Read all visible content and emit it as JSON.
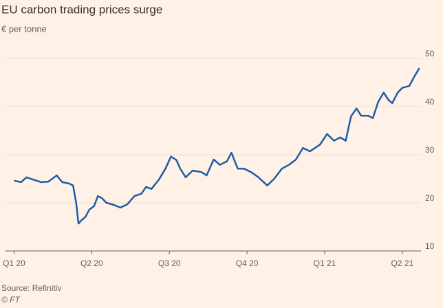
{
  "chart_data": {
    "type": "line",
    "title": "EU carbon trading prices surge",
    "subtitle": "€ per tonne",
    "source": "Source: Refinitiv",
    "credit": "© FT",
    "x": [
      0,
      0.09,
      0.16,
      0.27,
      0.35,
      0.44,
      0.55,
      0.62,
      0.71,
      0.76,
      0.8,
      0.83,
      0.87,
      0.92,
      0.97,
      1.03,
      1.08,
      1.13,
      1.19,
      1.28,
      1.37,
      1.46,
      1.55,
      1.64,
      1.7,
      1.77,
      1.86,
      1.95,
      2.02,
      2.09,
      2.14,
      2.21,
      2.3,
      2.41,
      2.48,
      2.57,
      2.65,
      2.74,
      2.8,
      2.88,
      2.96,
      3.05,
      3.14,
      3.26,
      3.35,
      3.45,
      3.54,
      3.63,
      3.72,
      3.81,
      3.94,
      4.03,
      4.12,
      4.2,
      4.27,
      4.34,
      4.41,
      4.47,
      4.56,
      4.62,
      4.69,
      4.76,
      4.82,
      4.87,
      4.94,
      5,
      5.09,
      5.16,
      5.22
    ],
    "series": [
      {
        "color": "#1c5ca8",
        "values": [
          24.6,
          24.3,
          25.3,
          24.7,
          24.3,
          24.4,
          25.7,
          24.3,
          24,
          23.6,
          20,
          15.7,
          16.4,
          17.1,
          18.6,
          19.3,
          21.4,
          21,
          20,
          19.6,
          19,
          19.7,
          21.4,
          21.9,
          23.3,
          22.9,
          24.7,
          27.1,
          29.6,
          28.9,
          27.1,
          25.3,
          26.7,
          26.4,
          25.7,
          29,
          27.9,
          28.6,
          30.4,
          27.1,
          27.1,
          26.4,
          25.4,
          23.6,
          25,
          27.1,
          27.9,
          29,
          31.4,
          30.7,
          32.1,
          34.3,
          32.9,
          33.6,
          32.9,
          38,
          39.6,
          38.1,
          38.1,
          37.6,
          41,
          42.9,
          41.4,
          40.7,
          42.9,
          43.9,
          44.3,
          46.4,
          48
        ]
      }
    ],
    "xlim": [
      -0.11,
      5.24
    ],
    "xticks": [
      {
        "value": 0,
        "label": "Q1 20"
      },
      {
        "value": 1,
        "label": "Q2 20"
      },
      {
        "value": 2,
        "label": "Q3 20"
      },
      {
        "value": 3,
        "label": "Q4 20"
      },
      {
        "value": 4,
        "label": "Q1 21"
      },
      {
        "value": 5,
        "label": "Q2 21"
      }
    ],
    "ylim": [
      10,
      51
    ],
    "yticks": [
      10,
      20,
      30,
      40,
      50
    ],
    "grid": true
  }
}
